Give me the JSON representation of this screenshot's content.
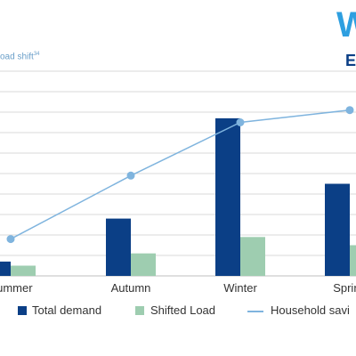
{
  "header": {
    "subtitle_partial": "oad shift",
    "subtitle_note": "34",
    "logo_fragment": "W",
    "logo_fragment_2": "E"
  },
  "colors": {
    "total_demand": "#0b3f86",
    "shifted_load": "#9ecdb0",
    "household_savings": "#7fb4de",
    "grid": "#d9d9d9"
  },
  "chart_data": {
    "type": "bar",
    "title": "",
    "xlabel": "",
    "ylabel": "",
    "categories": [
      "Summer",
      "Autumn",
      "Winter",
      "Spring"
    ],
    "series": [
      {
        "name": "Total demand",
        "type": "bar",
        "values": [
          7,
          28,
          77,
          45
        ]
      },
      {
        "name": "Shifted Load",
        "type": "bar",
        "values": [
          5,
          11,
          19,
          15
        ]
      },
      {
        "name": "Household savings",
        "type": "line",
        "values": [
          18,
          49,
          75,
          81
        ]
      }
    ],
    "ylim": [
      0,
      100
    ],
    "grid": true,
    "legend_position": "bottom"
  },
  "legend": {
    "items": [
      {
        "label": "Total demand"
      },
      {
        "label": "Shifted Load"
      },
      {
        "label": "Household savi"
      }
    ]
  }
}
